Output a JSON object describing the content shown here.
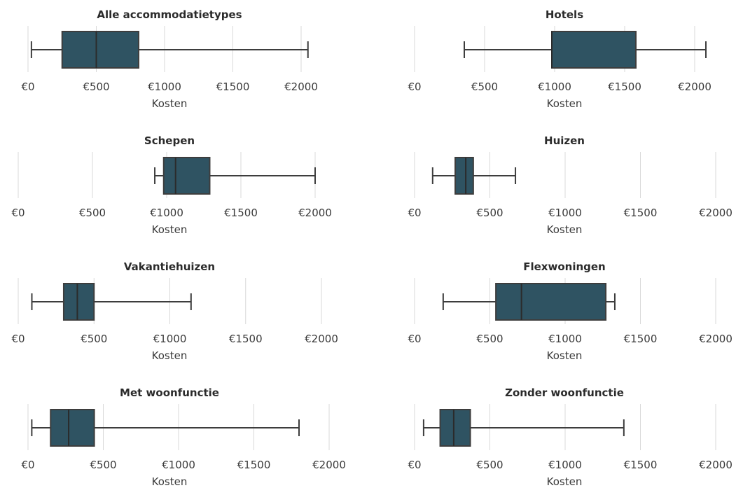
{
  "chart_data": [
    {
      "type": "boxplot",
      "title": "Alle accommodatietypes",
      "xlabel": "Kosten",
      "ticks": [
        0,
        500,
        1000,
        1500,
        2000
      ],
      "tick_labels": [
        "€0",
        "€500",
        "€1000",
        "€1500",
        "€2000"
      ],
      "stats": {
        "whisker_low": 25,
        "q1": 250,
        "median": 500,
        "q3": 810,
        "whisker_high": 2050
      },
      "box_color": "#2f5362"
    },
    {
      "type": "boxplot",
      "title": "Hotels",
      "xlabel": "Kosten",
      "ticks": [
        0,
        500,
        1000,
        1500,
        2000
      ],
      "tick_labels": [
        "€0",
        "€500",
        "€1000",
        "€1500",
        "€2000"
      ],
      "stats": {
        "whisker_low": 355,
        "q1": 980,
        "median": 980,
        "q3": 1580,
        "whisker_high": 2080
      },
      "box_color": "#2f5362"
    },
    {
      "type": "boxplot",
      "title": "Schepen",
      "xlabel": "Kosten",
      "ticks": [
        0,
        500,
        1000,
        1500,
        2000
      ],
      "tick_labels": [
        "€0",
        "€500",
        "€1000",
        "€1500",
        "€2000"
      ],
      "stats": {
        "whisker_low": 920,
        "q1": 980,
        "median": 1060,
        "q3": 1290,
        "whisker_high": 2000
      },
      "box_color": "#2f5362"
    },
    {
      "type": "boxplot",
      "title": "Huizen",
      "xlabel": "Kosten",
      "ticks": [
        0,
        500,
        1000,
        1500,
        2000
      ],
      "tick_labels": [
        "€0",
        "€500",
        "€1000",
        "€1500",
        "€2000"
      ],
      "stats": {
        "whisker_low": 120,
        "q1": 270,
        "median": 340,
        "q3": 390,
        "whisker_high": 670
      },
      "box_color": "#2f5362"
    },
    {
      "type": "boxplot",
      "title": "Vakantiehuizen",
      "xlabel": "Kosten",
      "ticks": [
        0,
        500,
        1000,
        1500,
        2000
      ],
      "tick_labels": [
        "€0",
        "€500",
        "€1000",
        "€1500",
        "€2000"
      ],
      "stats": {
        "whisker_low": 90,
        "q1": 300,
        "median": 390,
        "q3": 500,
        "whisker_high": 1140
      },
      "box_color": "#2f5362"
    },
    {
      "type": "boxplot",
      "title": "Flexwoningen",
      "xlabel": "Kosten",
      "ticks": [
        0,
        500,
        1000,
        1500,
        2000
      ],
      "tick_labels": [
        "€0",
        "€500",
        "€1000",
        "€1500",
        "€2000"
      ],
      "stats": {
        "whisker_low": 190,
        "q1": 540,
        "median": 710,
        "q3": 1270,
        "whisker_high": 1330
      },
      "box_color": "#2f5362"
    },
    {
      "type": "boxplot",
      "title": "Met woonfunctie",
      "xlabel": "Kosten",
      "ticks": [
        0,
        500,
        1000,
        1500,
        2000
      ],
      "tick_labels": [
        "€0",
        "€500",
        "€1000",
        "€1500",
        "€2000"
      ],
      "stats": {
        "whisker_low": 25,
        "q1": 150,
        "median": 270,
        "q3": 440,
        "whisker_high": 1800
      },
      "box_color": "#2f5362"
    },
    {
      "type": "boxplot",
      "title": "Zonder woonfunctie",
      "xlabel": "Kosten",
      "ticks": [
        0,
        500,
        1000,
        1500,
        2000
      ],
      "tick_labels": [
        "€0",
        "€500",
        "€1000",
        "€1500",
        "€2000"
      ],
      "stats": {
        "whisker_low": 60,
        "q1": 170,
        "median": 260,
        "q3": 370,
        "whisker_high": 1390
      },
      "box_color": "#2f5362"
    }
  ]
}
